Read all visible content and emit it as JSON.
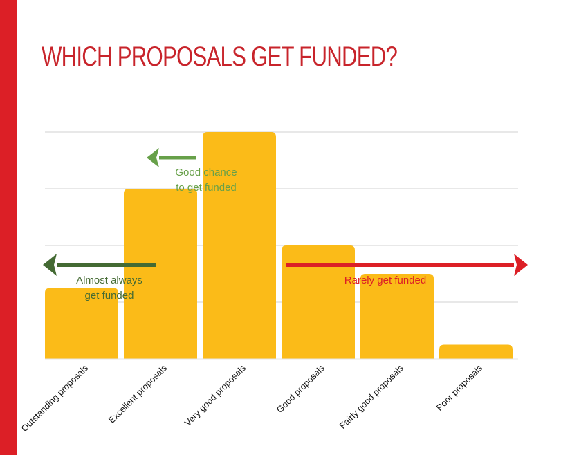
{
  "title": "WHICH PROPOSALS GET FUNDED?",
  "colors": {
    "accent_bar": "#dc1f26",
    "title": "#c8242b",
    "bar": "#fbbb18",
    "grid": "#d0d0d0",
    "arrow_dark_green": "#446a33",
    "arrow_light_green": "#67a049",
    "arrow_red": "#dc1f26"
  },
  "chart_data": {
    "type": "bar",
    "categories": [
      "Outstanding proposals",
      "Excellent proposals",
      "Very good proposals",
      "Good proposals",
      "Fairly good proposals",
      "Poor proposals"
    ],
    "values": [
      25,
      60,
      80,
      40,
      30,
      5
    ],
    "ylim": [
      0,
      80
    ],
    "grid": true,
    "title": "",
    "xlabel": "",
    "ylabel": "",
    "annotations": [
      {
        "id": "good_chance",
        "lines": [
          "Good chance",
          "to get funded"
        ],
        "color": "#67a049",
        "arrow": "left"
      },
      {
        "id": "almost_always",
        "lines": [
          "Almost always",
          "get funded"
        ],
        "color": "#446a33",
        "arrow": "left"
      },
      {
        "id": "rarely",
        "lines": [
          "Rarely get funded"
        ],
        "color": "#dc1f26",
        "arrow": "right"
      }
    ]
  }
}
